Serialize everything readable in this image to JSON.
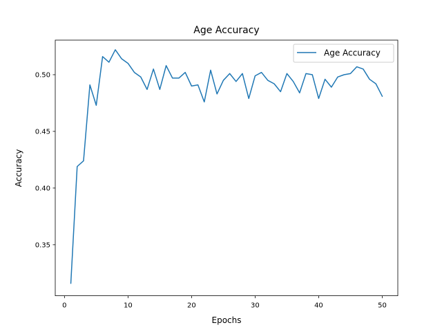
{
  "chart_data": {
    "type": "line",
    "title": "Age Accuracy",
    "xlabel": "Epochs",
    "ylabel": "Accuracy",
    "xlim": [
      -1.45,
      52.45
    ],
    "ylim": [
      0.305,
      0.5305
    ],
    "xticks": [
      0,
      10,
      20,
      30,
      40,
      50
    ],
    "xtick_labels": [
      "0",
      "10",
      "20",
      "30",
      "40",
      "50"
    ],
    "yticks": [
      0.35,
      0.4,
      0.45,
      0.5
    ],
    "ytick_labels": [
      "0.35",
      "0.40",
      "0.45",
      "0.50"
    ],
    "grid": false,
    "legend": {
      "position": "top-right"
    },
    "series": [
      {
        "name": "Age Accuracy",
        "color": "#1f77b4",
        "x": [
          1,
          2,
          3,
          4,
          5,
          6,
          7,
          8,
          9,
          10,
          11,
          12,
          13,
          14,
          15,
          16,
          17,
          18,
          19,
          20,
          21,
          22,
          23,
          24,
          25,
          26,
          27,
          28,
          29,
          30,
          31,
          32,
          33,
          34,
          35,
          36,
          37,
          38,
          39,
          40,
          41,
          42,
          43,
          44,
          45,
          46,
          47,
          48,
          49,
          50
        ],
        "y": [
          0.316,
          0.419,
          0.424,
          0.491,
          0.473,
          0.516,
          0.511,
          0.522,
          0.514,
          0.51,
          0.502,
          0.498,
          0.487,
          0.505,
          0.487,
          0.508,
          0.497,
          0.497,
          0.502,
          0.49,
          0.491,
          0.476,
          0.504,
          0.483,
          0.495,
          0.501,
          0.494,
          0.501,
          0.479,
          0.499,
          0.502,
          0.495,
          0.492,
          0.485,
          0.501,
          0.494,
          0.484,
          0.501,
          0.5,
          0.479,
          0.496,
          0.489,
          0.498,
          0.5,
          0.501,
          0.507,
          0.505,
          0.496,
          0.492,
          0.481
        ]
      }
    ]
  }
}
